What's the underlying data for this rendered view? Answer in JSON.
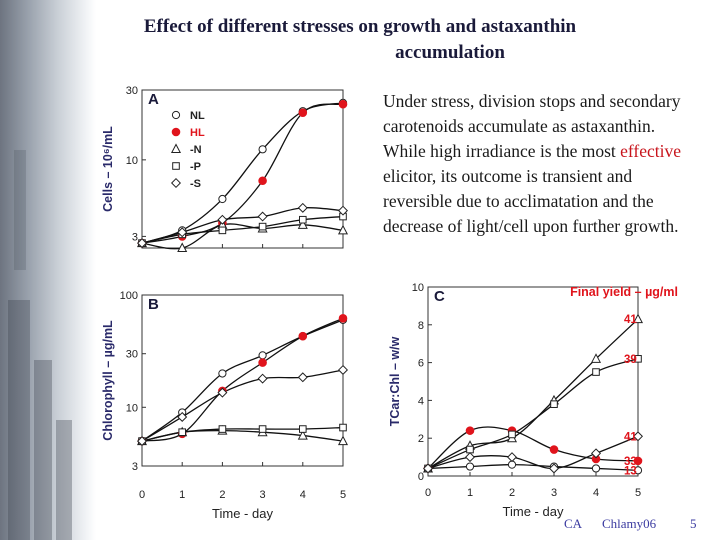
{
  "title_line1": "Effect of different stresses on growth and astaxanthin",
  "title_line2": "accumulation",
  "description": {
    "part1": "Under stress, division stops and secondary carotenoids accumulate as astaxanthin. While high irradiance is the most ",
    "highlight": "effective",
    "part2": " elicitor, its outcome is transient and reversible due to acclimatation and the decrease of light/cell upon further growth."
  },
  "footer": {
    "author": "CA",
    "course": "Chlamy06",
    "page": "5"
  },
  "colors": {
    "hl_series": "#e0141c",
    "text_highlight": "#c8141c"
  },
  "legend": [
    {
      "label": "NL",
      "marker": "circle-open"
    },
    {
      "label": "HL",
      "marker": "circle-filled"
    },
    {
      "label": "-N",
      "marker": "triangle"
    },
    {
      "label": "-P",
      "marker": "square"
    },
    {
      "label": "-S",
      "marker": "diamond"
    }
  ],
  "chart_data": [
    {
      "panel": "A",
      "type": "line",
      "ylabel": "Cells – 10⁶/mL",
      "yscale": "log",
      "ylim": [
        2.5,
        30
      ],
      "xlim": [
        0,
        5
      ],
      "yticks": [
        "3",
        "10",
        "30"
      ],
      "x": [
        0,
        1,
        2,
        3,
        4,
        5
      ],
      "series": [
        {
          "name": "NL",
          "marker": "circle-open",
          "values": [
            2.7,
            3.3,
            5.4,
            11.8,
            21.5,
            24.5
          ]
        },
        {
          "name": "HL",
          "marker": "circle-filled",
          "values": [
            2.7,
            3.0,
            3.7,
            7.2,
            21.0,
            24.0
          ]
        },
        {
          "name": "-N",
          "marker": "triangle",
          "values": [
            2.7,
            2.5,
            3.6,
            3.4,
            3.6,
            3.3
          ]
        },
        {
          "name": "-P",
          "marker": "square",
          "values": [
            2.7,
            3.1,
            3.3,
            3.5,
            3.9,
            4.1
          ]
        },
        {
          "name": "-S",
          "marker": "diamond",
          "values": [
            2.7,
            3.2,
            3.9,
            4.1,
            4.7,
            4.5
          ]
        }
      ]
    },
    {
      "panel": "B",
      "type": "line",
      "ylabel": "Chlorophyll – µg/mL",
      "yscale": "log",
      "ylim": [
        3,
        100
      ],
      "xlim": [
        0,
        5
      ],
      "yticks": [
        "3",
        "10",
        "30",
        "100"
      ],
      "xticks": [
        "0",
        "1",
        "2",
        "3",
        "4",
        "5"
      ],
      "xlabel": "Time - day",
      "x": [
        0,
        1,
        2,
        3,
        4,
        5
      ],
      "series": [
        {
          "name": "NL",
          "marker": "circle-open",
          "values": [
            5.0,
            9.0,
            20.0,
            29.0,
            43.0,
            60.0
          ]
        },
        {
          "name": "HL",
          "marker": "circle-filled",
          "values": [
            5.0,
            5.8,
            14.0,
            25.0,
            43.0,
            62.0
          ]
        },
        {
          "name": "-N",
          "marker": "triangle",
          "values": [
            5.0,
            6.0,
            6.2,
            6.0,
            5.6,
            5.0
          ]
        },
        {
          "name": "-P",
          "marker": "square",
          "values": [
            5.0,
            6.0,
            6.4,
            6.4,
            6.4,
            6.6
          ]
        },
        {
          "name": "-S",
          "marker": "diamond",
          "values": [
            5.0,
            8.2,
            13.5,
            18.0,
            18.5,
            21.5
          ]
        }
      ]
    },
    {
      "panel": "C",
      "type": "line",
      "ylabel": "TCar:Chl – w/w",
      "ylim": [
        0,
        10
      ],
      "xlim": [
        0,
        5
      ],
      "yticks": [
        "0",
        "2",
        "4",
        "6",
        "8",
        "10"
      ],
      "xticks": [
        "0",
        "1",
        "2",
        "3",
        "4",
        "5"
      ],
      "xlabel": "Time - day",
      "annotation": "Final yield – µg/ml",
      "x": [
        0,
        1,
        2,
        3,
        4,
        5
      ],
      "series": [
        {
          "name": "NL",
          "marker": "circle-open",
          "values": [
            0.4,
            0.5,
            0.6,
            0.5,
            0.4,
            0.3
          ],
          "final_label": "13"
        },
        {
          "name": "HL",
          "marker": "circle-filled",
          "values": [
            0.4,
            2.4,
            2.4,
            1.4,
            0.9,
            0.8
          ],
          "final_label": "33"
        },
        {
          "name": "-N",
          "marker": "triangle",
          "values": [
            0.4,
            1.6,
            2.0,
            4.0,
            6.2,
            8.3
          ],
          "final_label": "41"
        },
        {
          "name": "-P",
          "marker": "square",
          "values": [
            0.4,
            1.4,
            2.2,
            3.8,
            5.5,
            6.2
          ],
          "final_label": "39"
        },
        {
          "name": "-S",
          "marker": "diamond",
          "values": [
            0.4,
            1.0,
            1.0,
            0.4,
            1.2,
            2.1
          ],
          "final_label": "41"
        }
      ]
    }
  ]
}
